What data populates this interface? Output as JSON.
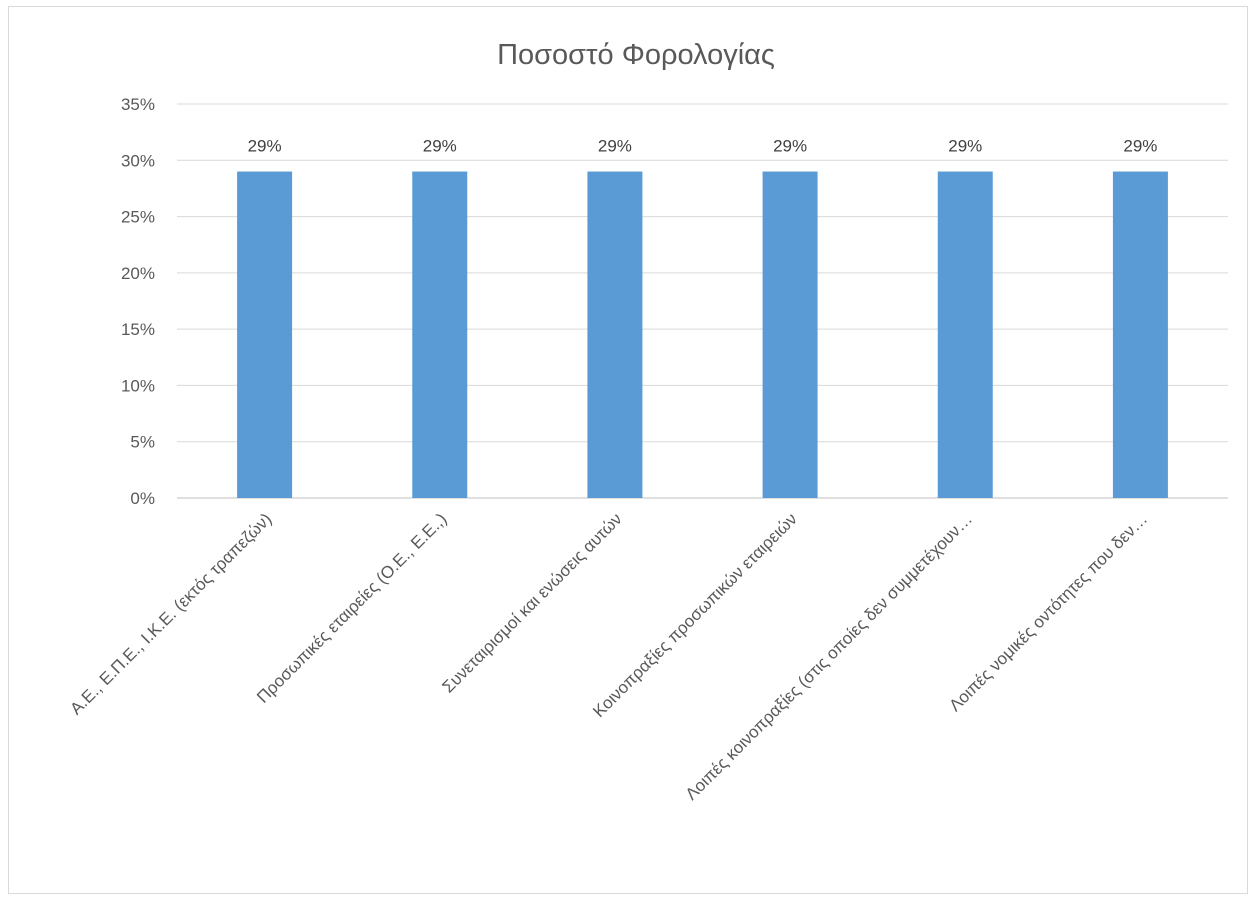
{
  "chart_data": {
    "type": "bar",
    "title": "Ποσοστό Φορολογίας",
    "xlabel": "",
    "ylabel": "",
    "categories": [
      "Α.Ε., Ε.Π.Ε., Ι.Κ.Ε. (εκτός τραπεζών)",
      "Προσωπικές εταιρείες (Ο.Ε., Ε.Ε.,)",
      "Συνεταιρισμοί και ενώσεις αυτών",
      "Κοινοπραξίες προσωπικών εταιρειών",
      "Λοιπές κοινοπραξίες (στις οποίες δεν συμμετέχουν…",
      "Λοιπές νομικές οντότητες που δεν…"
    ],
    "values": [
      29,
      29,
      29,
      29,
      29,
      29
    ],
    "data_labels": [
      "29%",
      "29%",
      "29%",
      "29%",
      "29%",
      "29%"
    ],
    "ylim": [
      0,
      35
    ],
    "yticks": [
      "0%",
      "5%",
      "10%",
      "15%",
      "20%",
      "25%",
      "30%",
      "35%"
    ],
    "grid": true,
    "legend": "none",
    "colors": {
      "bar": "#5b9bd5",
      "grid": "#d9d9d9",
      "text": "#595959"
    }
  }
}
